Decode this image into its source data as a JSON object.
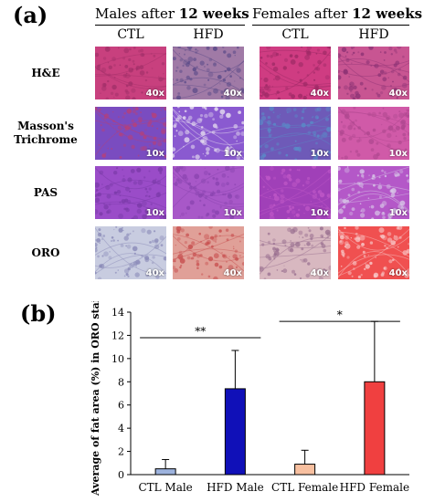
{
  "panel_a": {
    "label": "(a)",
    "groups": [
      {
        "title_prefix": "Males after ",
        "title_bold": "12 weeks"
      },
      {
        "title_prefix": "Females after ",
        "title_bold": "12 weeks"
      }
    ],
    "columns": [
      "CTL",
      "HFD",
      "CTL",
      "HFD"
    ],
    "rows": [
      {
        "label_lines": [
          "H&E"
        ],
        "mags": [
          "40x",
          "40x",
          "40x",
          "40x"
        ],
        "colors": [
          [
            "#c8407e",
            "#a3306a"
          ],
          [
            "#a07aa6",
            "#5a4a88"
          ],
          [
            "#cf3c82",
            "#9e2a66"
          ],
          [
            "#c85592",
            "#8f3476"
          ]
        ]
      },
      {
        "label_lines": [
          "Masson's",
          "Trichrome"
        ],
        "mags": [
          "10x",
          "10x",
          "10x",
          "10x"
        ],
        "colors": [
          [
            "#7a4cc0",
            "#b5407a"
          ],
          [
            "#8a5ad0",
            "#e8e0f0"
          ],
          [
            "#6e5ab8",
            "#5a8ac8"
          ],
          [
            "#d05aa8",
            "#b04890"
          ]
        ]
      },
      {
        "label_lines": [
          "PAS"
        ],
        "mags": [
          "10x",
          "10x",
          "10x",
          "10x"
        ],
        "colors": [
          [
            "#9a4cc8",
            "#7a3aa8"
          ],
          [
            "#a858c8",
            "#8a44b0"
          ],
          [
            "#a040b8",
            "#c058c8"
          ],
          [
            "#b458c8",
            "#d8c8e8"
          ]
        ]
      },
      {
        "label_lines": [
          "ORO"
        ],
        "mags": [
          "40x",
          "40x",
          "40x",
          "40x"
        ],
        "colors": [
          [
            "#c8cce0",
            "#8a8ab8"
          ],
          [
            "#e0a098",
            "#c85050"
          ],
          [
            "#d8b8c0",
            "#9a7090"
          ],
          [
            "#f05050",
            "#f8c8c8"
          ]
        ]
      }
    ]
  },
  "panel_b": {
    "label": "(b)",
    "chart_data": {
      "type": "bar",
      "categories": [
        "CTL Male",
        "HFD Male",
        "CTL Female",
        "HFD Female"
      ],
      "values": [
        0.5,
        7.4,
        0.9,
        8.0
      ],
      "errors": [
        0.8,
        3.3,
        1.2,
        5.2
      ],
      "colors": [
        "#9db3de",
        "#1010b8",
        "#f8c0a0",
        "#f04040"
      ],
      "ylabel": "Average of fat area (%) in ORO stain",
      "xlabel": "",
      "ylim": [
        0,
        14
      ],
      "yticks": [
        "0",
        "2",
        "4",
        "6",
        "8",
        "10",
        "12",
        "14"
      ],
      "significance": [
        {
          "from": 0,
          "to": 1,
          "label": "**",
          "y": 11.8
        },
        {
          "from": 2,
          "to": 3,
          "label": "*",
          "y": 13.2
        }
      ],
      "grid": false,
      "legend": "none"
    }
  }
}
